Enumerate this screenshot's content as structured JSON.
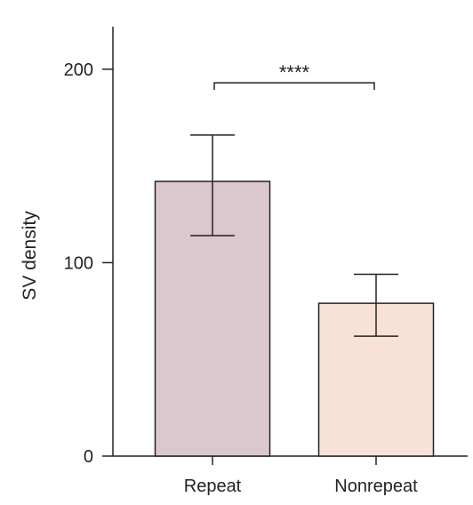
{
  "chart_data": {
    "type": "bar",
    "categories": [
      "Repeat",
      "Nonrepeat"
    ],
    "values": [
      142,
      79
    ],
    "error_low": [
      114,
      62
    ],
    "error_high": [
      166,
      94
    ],
    "bar_colors": [
      "#dcc7ce",
      "#f8e2d5"
    ],
    "title": "",
    "xlabel": "",
    "ylabel": "SV density",
    "ylim": [
      0,
      222
    ],
    "yticks": [
      0,
      100,
      200
    ],
    "ytick_labels": [
      "0",
      "100",
      "200"
    ],
    "grid": false,
    "significance": {
      "from": "Repeat",
      "to": "Nonrepeat",
      "y": 193,
      "label": "****"
    }
  }
}
